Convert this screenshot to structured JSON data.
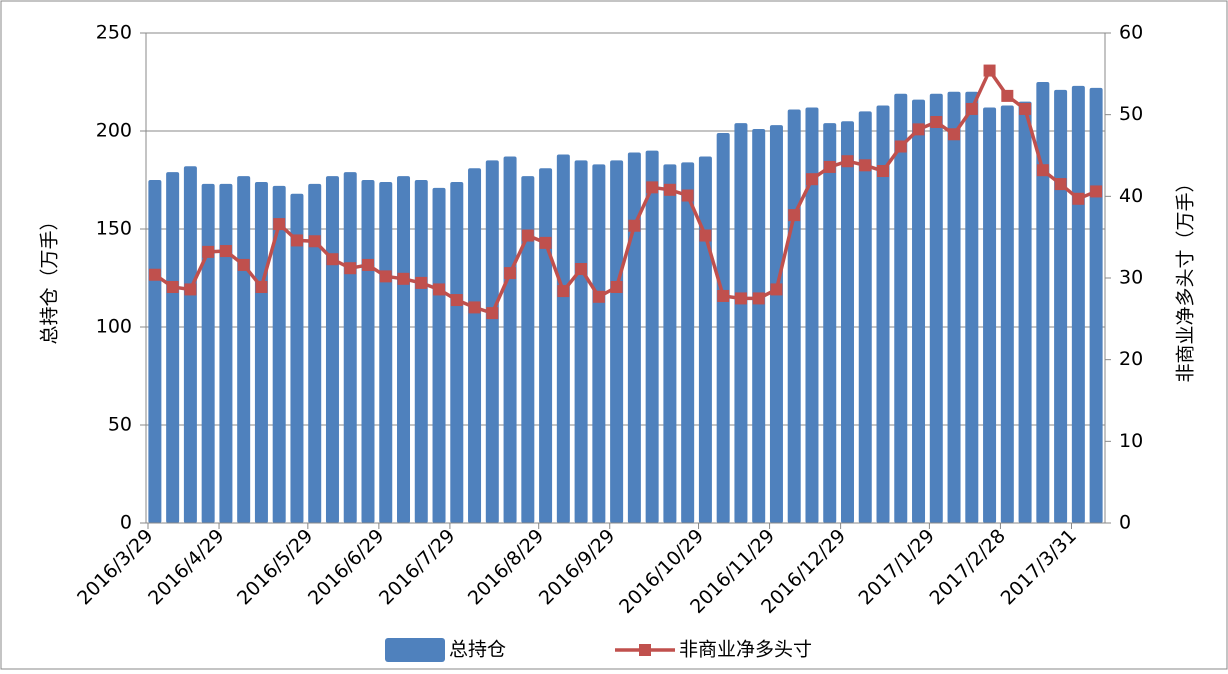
{
  "chart_data": {
    "type": "bar_line",
    "y_label": "总持仓（万手）",
    "y2_label": "非商业净多头寸（万手）",
    "categories": [
      "2016/3/29",
      null,
      null,
      null,
      "2016/4/29",
      null,
      null,
      null,
      null,
      "2016/5/29",
      null,
      null,
      null,
      "2016/6/29",
      null,
      null,
      null,
      "2016/7/29",
      null,
      null,
      null,
      null,
      "2016/8/29",
      null,
      null,
      null,
      "2016/9/29",
      null,
      null,
      null,
      null,
      "2016/10/29",
      null,
      null,
      null,
      "2016/11/29",
      null,
      null,
      null,
      "2016/12/29",
      null,
      null,
      null,
      null,
      "2017/1/29",
      null,
      null,
      null,
      "2017/2/28",
      null,
      null,
      null,
      "2017/3/31",
      null
    ],
    "series": [
      {
        "name": "总持仓",
        "type": "bar",
        "color": "#4f81bd",
        "values": [
          175,
          179,
          182,
          173,
          173,
          177,
          174,
          172,
          168,
          173,
          177,
          179,
          175,
          174,
          177,
          175,
          171,
          174,
          181,
          185,
          187,
          177,
          181,
          188,
          185,
          183,
          185,
          189,
          190,
          183,
          184,
          187,
          199,
          204,
          201,
          203,
          211,
          212,
          204,
          205,
          210,
          213,
          219,
          216,
          219,
          220,
          220,
          212,
          213,
          215,
          225,
          221,
          223,
          222
        ]
      },
      {
        "name": "非商业净多头寸",
        "type": "line",
        "axis": "y2",
        "color": "#c0504d",
        "values": [
          30.4,
          28.9,
          28.6,
          33.2,
          33.3,
          31.6,
          28.9,
          36.6,
          34.6,
          34.5,
          32.3,
          31.2,
          31.6,
          30.2,
          29.9,
          29.4,
          28.6,
          27.3,
          26.4,
          25.7,
          30.6,
          35.2,
          34.3,
          28.4,
          31.1,
          27.7,
          28.9,
          36.4,
          41.1,
          40.8,
          40.1,
          35.2,
          27.8,
          27.5,
          27.5,
          28.6,
          37.7,
          42.1,
          43.6,
          44.3,
          43.8,
          43.1,
          46.1,
          48.2,
          49.1,
          47.6,
          50.7,
          55.4,
          52.3,
          50.7,
          43.2,
          41.5,
          39.7,
          40.6
        ]
      }
    ],
    "ylim": [
      0,
      250
    ],
    "yticks": [
      0,
      50,
      100,
      150,
      200,
      250
    ],
    "y2lim": [
      0,
      60
    ],
    "y2ticks": [
      0,
      10,
      20,
      30,
      40,
      50,
      60
    ],
    "grid": true,
    "legend": "bottom"
  }
}
